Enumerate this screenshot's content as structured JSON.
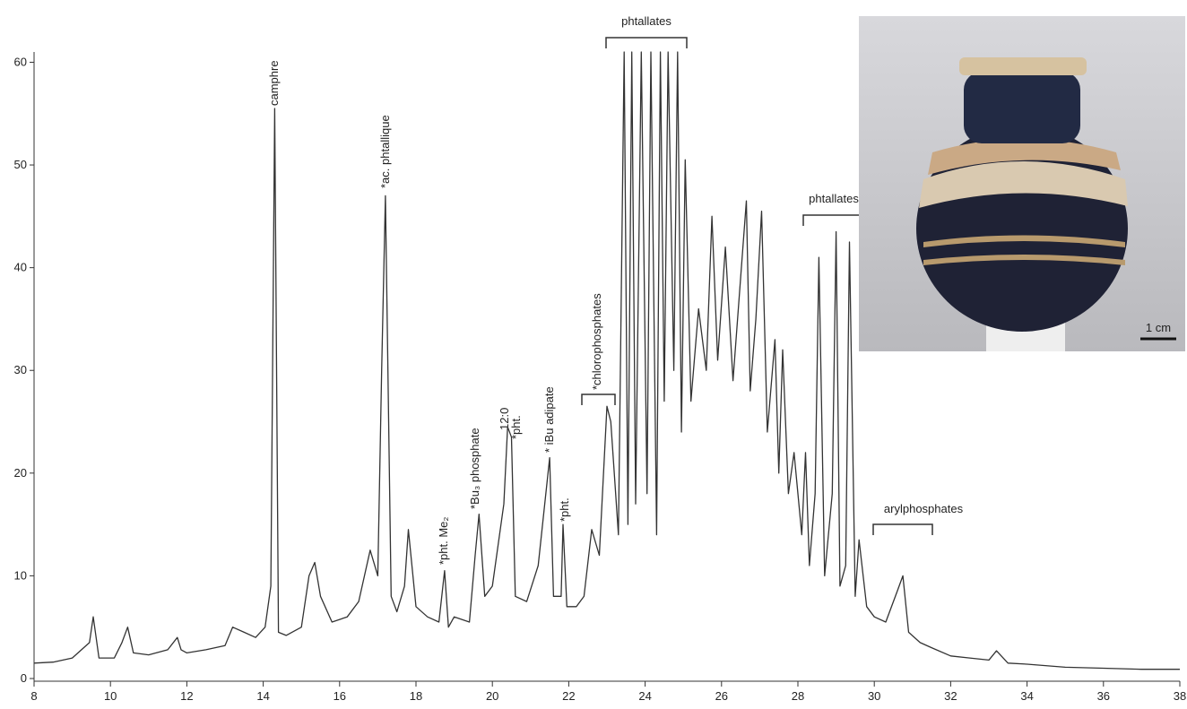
{
  "chart_data": {
    "type": "line",
    "x": [
      8,
      8.5,
      9,
      9.3,
      9.45,
      9.55,
      9.7,
      10.1,
      10.3,
      10.45,
      10.6,
      11,
      11.5,
      11.75,
      11.85,
      12,
      12.5,
      13,
      13.2,
      13.5,
      13.8,
      14.05,
      14.2,
      14.3,
      14.4,
      14.6,
      15,
      15.2,
      15.35,
      15.5,
      15.8,
      16.2,
      16.5,
      16.8,
      17,
      17.1,
      17.2,
      17.35,
      17.5,
      17.7,
      17.8,
      18,
      18.3,
      18.6,
      18.75,
      18.85,
      19,
      19.4,
      19.55,
      19.65,
      19.8,
      20,
      20.3,
      20.4,
      20.5,
      20.6,
      20.9,
      21.2,
      21.5,
      21.6,
      21.8,
      21.85,
      21.95,
      22.2,
      22.4,
      22.6,
      22.8,
      23,
      23.1,
      23.3,
      23.45,
      23.55,
      23.65,
      23.75,
      23.9,
      24.05,
      24.15,
      24.3,
      24.4,
      24.5,
      24.6,
      24.75,
      24.85,
      24.95,
      25.05,
      25.2,
      25.4,
      25.6,
      25.75,
      25.9,
      26.1,
      26.3,
      26.5,
      26.65,
      26.75,
      26.9,
      27.05,
      27.2,
      27.4,
      27.5,
      27.6,
      27.75,
      27.9,
      28.1,
      28.2,
      28.3,
      28.45,
      28.55,
      28.7,
      28.9,
      29,
      29.1,
      29.25,
      29.35,
      29.5,
      29.6,
      29.8,
      30,
      30.3,
      30.6,
      30.75,
      30.9,
      31.2,
      31.5,
      32,
      32.5,
      33,
      33.2,
      33.5,
      34,
      35,
      36,
      37,
      38
    ],
    "values": [
      1.5,
      1.6,
      2,
      3,
      3.5,
      6,
      2,
      2,
      3.5,
      5,
      2.5,
      2.3,
      2.8,
      4,
      2.8,
      2.5,
      2.8,
      3.2,
      5,
      4.5,
      4,
      5,
      9,
      55.5,
      4.5,
      4.2,
      5,
      10,
      11.3,
      8,
      5.5,
      6,
      7.5,
      12.5,
      10,
      30,
      47,
      8,
      6.5,
      9,
      14.5,
      7,
      6,
      5.5,
      10.5,
      5,
      6,
      5.5,
      12,
      16,
      8,
      9,
      17,
      24.5,
      23.5,
      8,
      7.5,
      11,
      21.5,
      8,
      8,
      15,
      7,
      7,
      8,
      14.5,
      12,
      26.5,
      25,
      14,
      61,
      15,
      61,
      17,
      61,
      18,
      61,
      14,
      61,
      27,
      61,
      30,
      61,
      24,
      50.5,
      27,
      36,
      30,
      45,
      31,
      42,
      29,
      39,
      46.5,
      28,
      35,
      45.5,
      24,
      33,
      20,
      32,
      18,
      22,
      14,
      22,
      11,
      18,
      41,
      10,
      18,
      43.5,
      9,
      11,
      42.5,
      8,
      13.5,
      7,
      6,
      5.5,
      8.5,
      10,
      4.5,
      3.5,
      3,
      2.2,
      2,
      1.8,
      2.7,
      1.5,
      1.4,
      1.1,
      1,
      0.9,
      0.9
    ],
    "color": "#333333",
    "xlim": [
      8,
      38
    ],
    "xticks": [
      8,
      10,
      12,
      14,
      16,
      18,
      20,
      22,
      24,
      26,
      28,
      30,
      32,
      34,
      36,
      38
    ],
    "ylim": [
      0,
      61
    ],
    "yticks": [
      0,
      10,
      20,
      30,
      40,
      50,
      60
    ],
    "annotations": [
      "camphre",
      "*ac. phtallique",
      "*pht. Me₂",
      "*Bu₃ phosphate",
      "12:0",
      "*pht.",
      "* iBu adipate",
      "*pht.",
      "*chlorophosphates",
      "phtallates",
      "phtallates",
      "arylphosphates"
    ],
    "scale_bar": "1 cm"
  }
}
